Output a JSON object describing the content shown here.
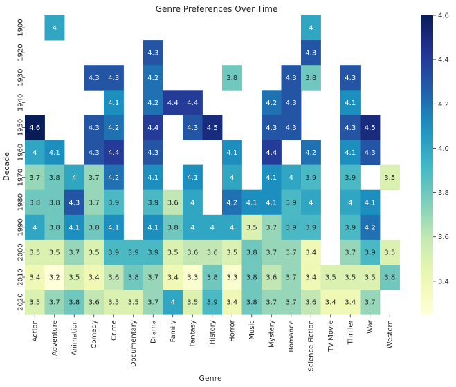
{
  "chart_data": {
    "type": "heatmap",
    "title": "Genre Preferences Over Time",
    "xlabel": "Genre",
    "ylabel": "Decade",
    "x_categories": [
      "Action",
      "Adventure",
      "Animation",
      "Comedy",
      "Crime",
      "Documentary",
      "Drama",
      "Family",
      "Fantasy",
      "History",
      "Horror",
      "Music",
      "Mystery",
      "Romance",
      "Science Fiction",
      "TV Movie",
      "Thriller",
      "War",
      "Western"
    ],
    "y_categories": [
      "1900",
      "1920",
      "1930",
      "1940",
      "1950",
      "1960",
      "1970",
      "1980",
      "1990",
      "2000",
      "2010",
      "2020"
    ],
    "values": [
      [
        null,
        4.0,
        null,
        null,
        null,
        null,
        null,
        null,
        null,
        null,
        null,
        null,
        null,
        null,
        4.0,
        null,
        null,
        null,
        null
      ],
      [
        null,
        null,
        null,
        null,
        null,
        null,
        4.3,
        null,
        null,
        null,
        null,
        null,
        null,
        null,
        4.3,
        null,
        null,
        null,
        null
      ],
      [
        null,
        null,
        null,
        4.3,
        4.3,
        null,
        4.2,
        null,
        null,
        null,
        3.8,
        null,
        null,
        4.3,
        3.8,
        null,
        4.3,
        null,
        null
      ],
      [
        null,
        null,
        null,
        null,
        4.1,
        null,
        4.2,
        4.4,
        4.4,
        null,
        null,
        null,
        4.2,
        4.3,
        null,
        null,
        4.1,
        null,
        null
      ],
      [
        4.6,
        null,
        null,
        4.3,
        4.2,
        null,
        4.4,
        null,
        4.3,
        4.5,
        null,
        null,
        4.3,
        4.3,
        null,
        null,
        4.3,
        4.5,
        null
      ],
      [
        4.0,
        4.1,
        null,
        4.3,
        4.4,
        null,
        4.3,
        null,
        null,
        null,
        4.1,
        null,
        4.4,
        null,
        4.2,
        null,
        4.1,
        4.3,
        null
      ],
      [
        3.7,
        3.8,
        4.0,
        3.7,
        4.2,
        null,
        4.1,
        null,
        4.1,
        null,
        4.0,
        null,
        4.1,
        4.0,
        3.9,
        null,
        3.9,
        null,
        3.5
      ],
      [
        3.8,
        3.8,
        4.3,
        3.7,
        3.9,
        null,
        3.9,
        3.6,
        4.0,
        null,
        4.2,
        4.1,
        4.1,
        3.9,
        4.0,
        null,
        4.0,
        4.1,
        null
      ],
      [
        4.0,
        3.8,
        4.1,
        3.8,
        4.1,
        null,
        4.1,
        3.8,
        4.0,
        4.0,
        4.0,
        3.5,
        3.7,
        3.9,
        3.9,
        null,
        3.9,
        4.2,
        null
      ],
      [
        3.5,
        3.5,
        3.7,
        3.5,
        3.9,
        3.9,
        3.9,
        3.5,
        3.6,
        3.6,
        3.5,
        3.8,
        3.7,
        3.7,
        3.4,
        null,
        3.7,
        3.9,
        3.5
      ],
      [
        3.4,
        3.2,
        3.5,
        3.4,
        3.6,
        3.8,
        3.7,
        3.4,
        3.3,
        3.8,
        3.3,
        3.8,
        3.6,
        3.7,
        3.4,
        3.5,
        3.5,
        3.5,
        3.8
      ],
      [
        3.5,
        3.7,
        3.8,
        3.6,
        3.5,
        3.5,
        3.7,
        4.0,
        3.5,
        3.9,
        3.4,
        3.8,
        3.7,
        3.7,
        3.6,
        3.4,
        3.4,
        3.7,
        null
      ]
    ],
    "colorbar": {
      "colormap": "YlGnBu",
      "vmin": 3.25,
      "vmax": 4.6,
      "ticks": [
        3.4,
        3.6,
        3.8,
        4.0,
        4.2,
        4.4,
        4.6
      ],
      "tick_labels": [
        "3.4",
        "3.6",
        "3.8",
        "4.0",
        "4.2",
        "4.4",
        "4.6"
      ]
    },
    "grid": false,
    "legend": "colorbar-right"
  }
}
